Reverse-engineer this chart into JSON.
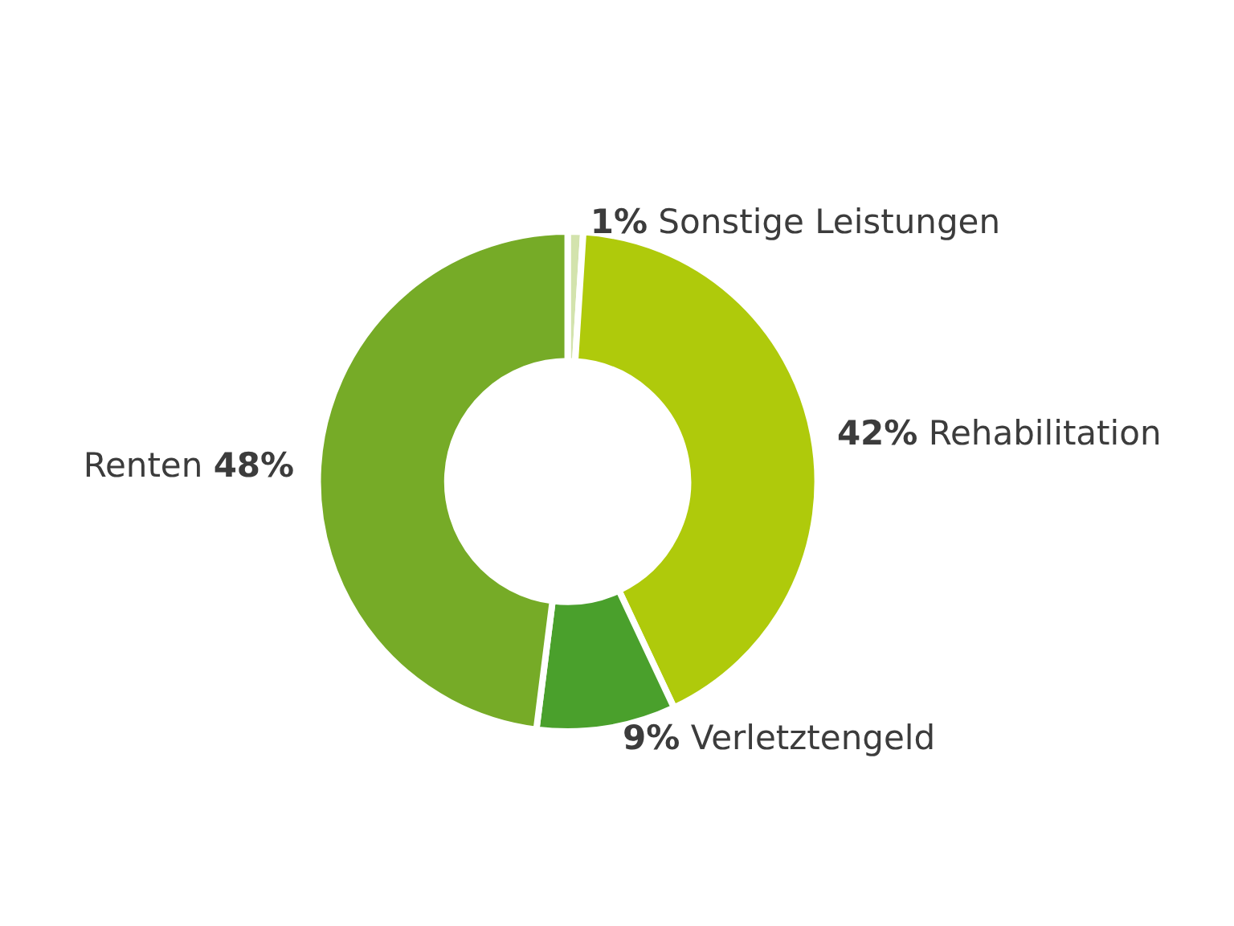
{
  "chart_data": {
    "type": "donut",
    "categories": [
      "Sonstige Leistungen",
      "Rehabilitation",
      "Verletztengeld",
      "Renten"
    ],
    "values": [
      1,
      42,
      9,
      48
    ],
    "value_labels": [
      "1%",
      "42%",
      "9%",
      "48%"
    ],
    "colors": [
      "#d3e3ad",
      "#afca0b",
      "#4aa02c",
      "#76ab27"
    ],
    "legend": false
  }
}
